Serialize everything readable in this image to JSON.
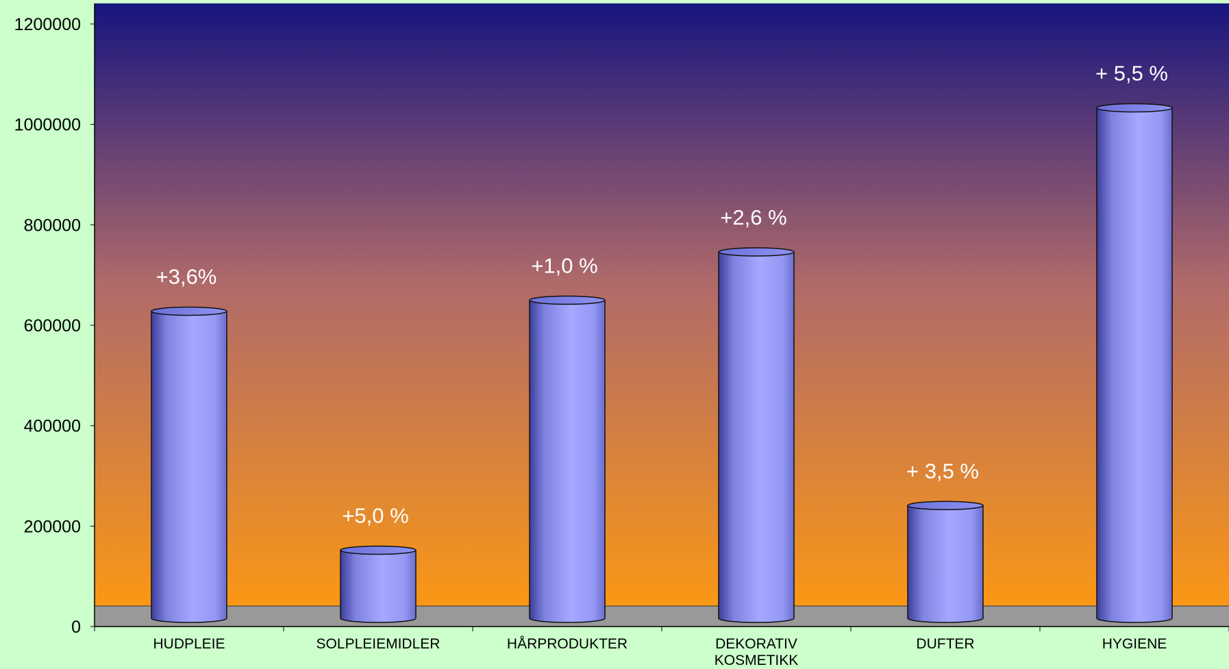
{
  "colors": {
    "page_background": "#ccffcc",
    "plot_gradient_top": "#17157f",
    "plot_gradient_mid": "#b06a6a",
    "plot_gradient_bottom": "#ff9a10",
    "floor": "#999999",
    "bar_fill": "#9ea2ff",
    "bar_edge": "#4c4fbf",
    "bar_label": "#ffffff",
    "axis_text": "#000000"
  },
  "chart_data": {
    "type": "bar",
    "style": "3d-cylinder",
    "categories": [
      "HUDPLEIE",
      "SOLPLEIEMIDLER",
      "HÅRPRODUKTER",
      "DEKORATIV KOSMETIKK",
      "DUFTER",
      "HYGIENE"
    ],
    "category_lines": [
      [
        "HUDPLEIE"
      ],
      [
        "SOLPLEIEMIDLER"
      ],
      [
        "HÅRPRODUKTER"
      ],
      [
        "DEKORATIV",
        "KOSMETIKK"
      ],
      [
        "DUFTER"
      ],
      [
        "HYGIENE"
      ]
    ],
    "values": [
      628000,
      152000,
      650000,
      746000,
      241000,
      1033000
    ],
    "data_labels": [
      "+3,6%",
      "+5,0 %",
      "+1,0 %",
      "+2,6 %",
      "+ 3,5 %",
      "+ 5,5 %"
    ],
    "yticks": [
      0,
      200000,
      400000,
      600000,
      800000,
      1000000,
      1200000
    ],
    "ytick_labels": [
      "0",
      "200000",
      "400000",
      "600000",
      "800000",
      "1000000",
      "1200000"
    ],
    "ylim": [
      0,
      1200000
    ],
    "title": "",
    "xlabel": "",
    "ylabel": "",
    "grid": false,
    "legend": "none"
  }
}
